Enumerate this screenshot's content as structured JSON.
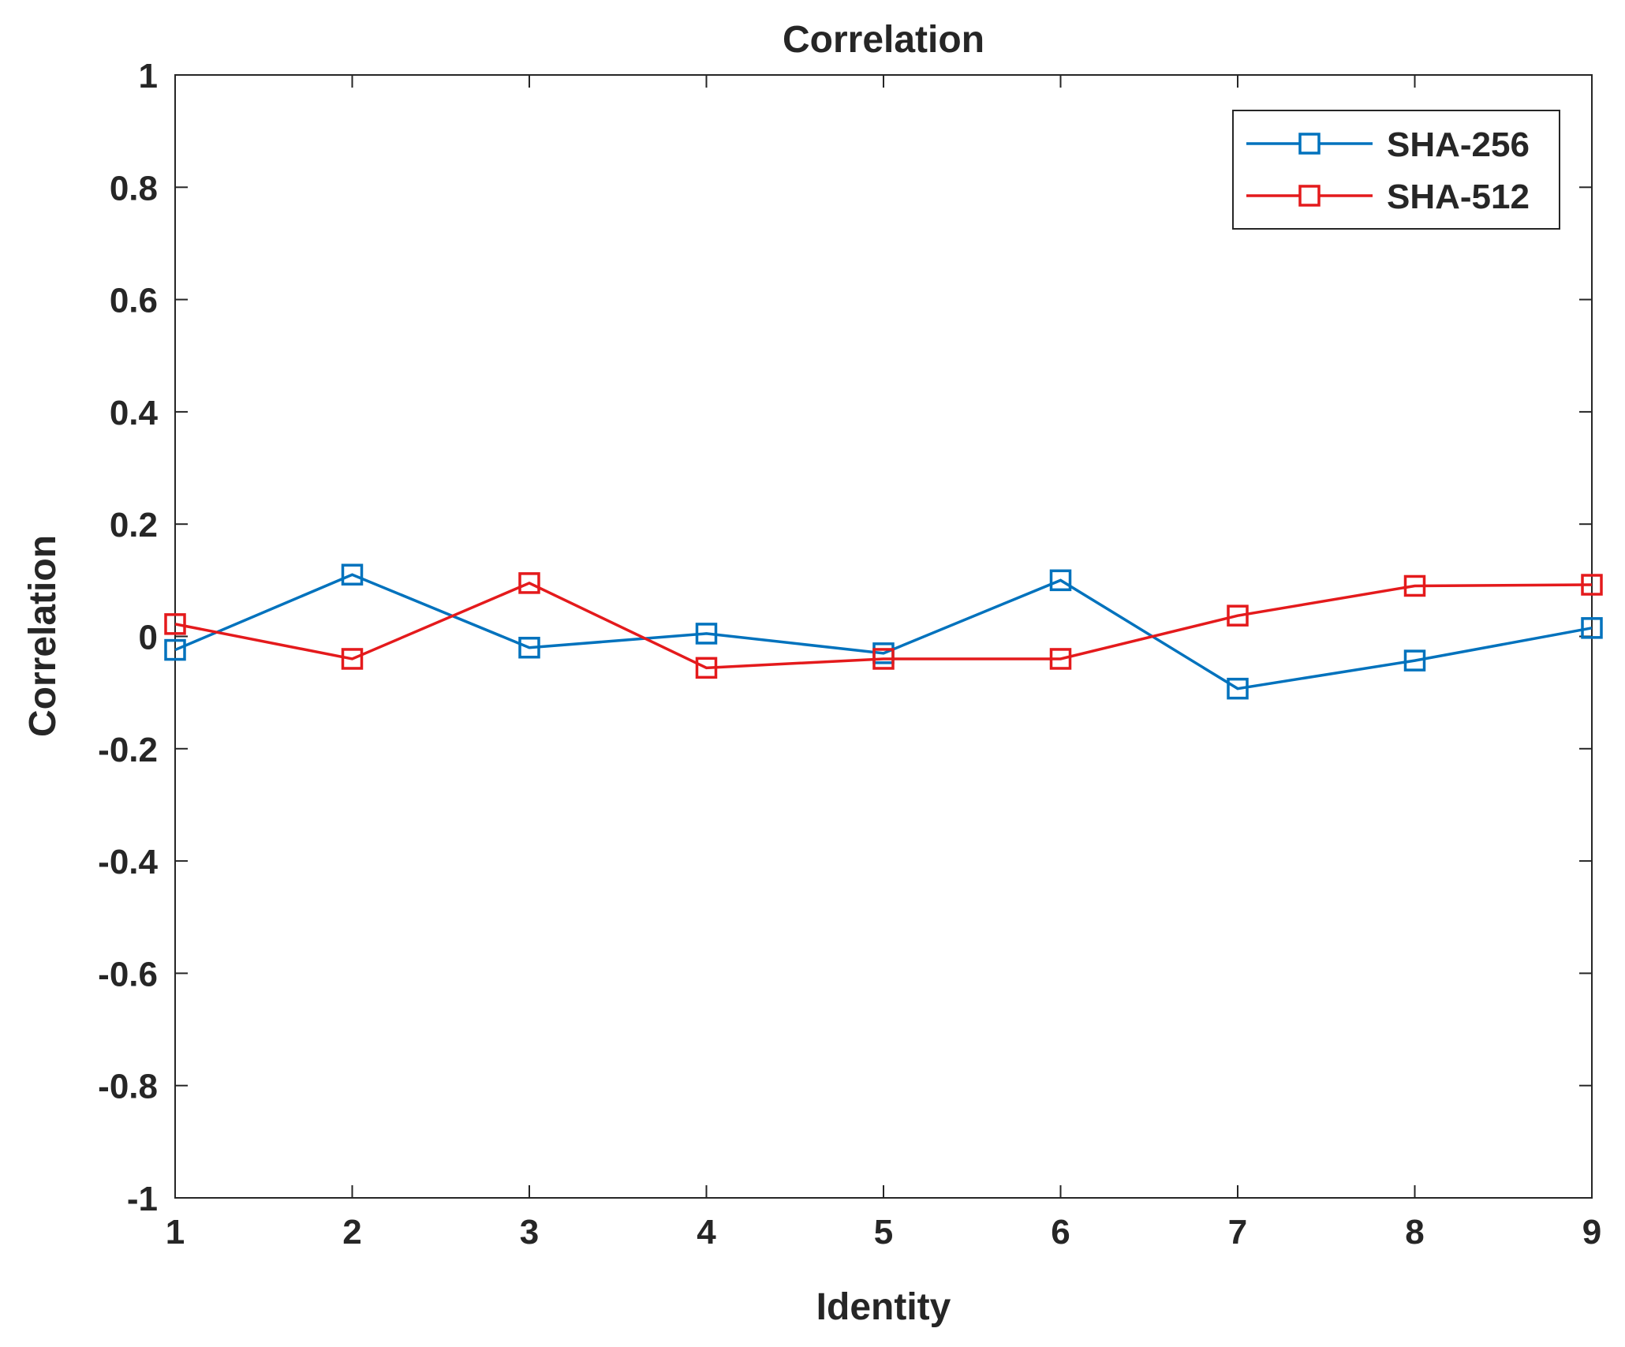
{
  "chart_data": {
    "type": "line",
    "title": "Correlation",
    "xlabel": "Identity",
    "ylabel": "Correlation",
    "x": [
      1,
      2,
      3,
      4,
      5,
      6,
      7,
      8,
      9
    ],
    "xlim": [
      1,
      9
    ],
    "ylim": [
      -1,
      1
    ],
    "xticks": [
      "1",
      "2",
      "3",
      "4",
      "5",
      "6",
      "7",
      "8",
      "9"
    ],
    "yticks": [
      "-1",
      "-0.8",
      "-0.6",
      "-0.4",
      "-0.2",
      "0",
      "0.2",
      "0.4",
      "0.6",
      "0.8",
      "1"
    ],
    "grid": false,
    "legend_position": "top-right",
    "marker": "square",
    "series": [
      {
        "name": "SHA-256",
        "color": "#0072BD",
        "values": [
          -0.024,
          0.11,
          -0.02,
          0.005,
          -0.03,
          0.1,
          -0.093,
          -0.043,
          0.015
        ]
      },
      {
        "name": "SHA-512",
        "color": "#E41A1C",
        "values": [
          0.022,
          -0.04,
          0.095,
          -0.056,
          -0.04,
          -0.04,
          0.037,
          0.09,
          0.092
        ]
      }
    ]
  }
}
